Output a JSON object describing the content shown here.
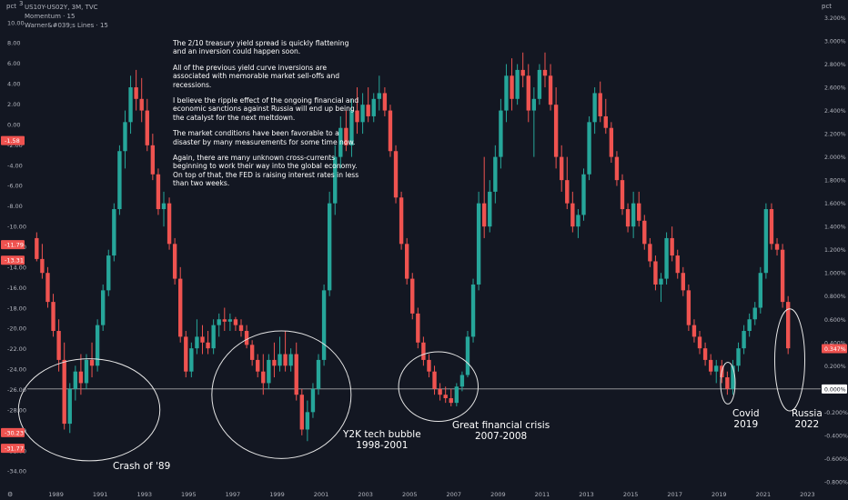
{
  "header": {
    "symbol": "US10Y-US02Y, 3M, TVC",
    "indicator1": "Momentum · 15",
    "indicator2": "Warner&#039;s Lines · 15",
    "left_unit": "pct",
    "right_unit": "pct"
  },
  "note": {
    "p1": "The 2/10 treasury yield spread is quickly flattening and an inversion could happen soon.",
    "p2": "All of the previous yield curve inversions are associated with memorable market sell-offs and recessions.",
    "p3": "I believe the ripple effect of the ongoing financial and economic sanctions against Russia will end up being the catalyst for the next meltdown.",
    "p4": "The market conditions have been favorable to a disaster by many measurements for some time now.",
    "p5": "Again, there are many unknown cross-currents beginning to work their way into the global economy. On top of that, the FED is raising interest rates in less than two weeks."
  },
  "annotations": {
    "crash89": "Crash of '89",
    "y2k_l1": "Y2K tech bubble",
    "y2k_l2": "1998-2001",
    "gfc_l1": "Great financial crisis",
    "gfc_l2": "2007-2008",
    "covid_l1": "Covid",
    "covid_l2": "2019",
    "russia_l1": "Russia",
    "russia_l2": "2022"
  },
  "colors": {
    "background": "#131722",
    "up": "#26a69a",
    "down": "#ef5350",
    "text": "#b2b5be",
    "zero_line": "#c8c8c8"
  },
  "chart_data": {
    "type": "candlestick",
    "x_ticks": [
      "1989",
      "1991",
      "1993",
      "1995",
      "1997",
      "1999",
      "2001",
      "2003",
      "2005",
      "2007",
      "2009",
      "2011",
      "2013",
      "2015",
      "2017",
      "2019",
      "2021",
      "2023"
    ],
    "x_range": [
      1987.7,
      2023.6
    ],
    "left_axis": {
      "ticks": [
        "10.00",
        "8.00",
        "6.00",
        "4.00",
        "2.00",
        "0.00",
        "-2.00",
        "-4.00",
        "-6.00",
        "-8.00",
        "-10.00",
        "-12.00",
        "-14.00",
        "-16.00",
        "-18.00",
        "-20.00",
        "-22.00",
        "-24.00",
        "-26.00",
        "-28.00",
        "-30.00",
        "-32.00",
        "-34.00"
      ],
      "range": [
        -35.5,
        11.5
      ],
      "badges": [
        "-1.58",
        "-11.79",
        "-13.31",
        "-30.23",
        "-31.77"
      ]
    },
    "right_axis": {
      "ticks": [
        "3.200%",
        "3.000%",
        "2.800%",
        "2.600%",
        "2.400%",
        "2.200%",
        "2.000%",
        "1.800%",
        "1.600%",
        "1.400%",
        "1.200%",
        "1.000%",
        "0.800%",
        "0.600%",
        "0.400%",
        "0.200%",
        "0.000%",
        "-0.200%",
        "-0.400%",
        "-0.600%",
        "-0.800%"
      ],
      "range": [
        -0.84,
        3.29
      ],
      "last_value": "0.347%",
      "zero_label": "0.000%",
      "zero_value": 0.0
    },
    "series": [
      {
        "name": "US10Y-US02Y",
        "values_o_h_l_c": [
          [
            1988.0,
            1.3,
            1.35,
            1.1,
            1.12
          ],
          [
            1988.25,
            1.12,
            1.25,
            0.95,
            1.0
          ],
          [
            1988.5,
            1.0,
            1.05,
            0.7,
            0.75
          ],
          [
            1988.75,
            0.75,
            0.82,
            0.45,
            0.5
          ],
          [
            1989.0,
            0.5,
            0.6,
            0.15,
            0.25
          ],
          [
            1989.25,
            0.25,
            0.4,
            -0.35,
            -0.3
          ],
          [
            1989.5,
            -0.3,
            0.05,
            -0.38,
            0.0
          ],
          [
            1989.75,
            0.0,
            0.2,
            -0.1,
            0.15
          ],
          [
            1990.0,
            0.15,
            0.3,
            -0.05,
            0.05
          ],
          [
            1990.25,
            0.05,
            0.3,
            0.0,
            0.25
          ],
          [
            1990.5,
            0.25,
            0.4,
            0.1,
            0.2
          ],
          [
            1990.75,
            0.2,
            0.6,
            0.15,
            0.55
          ],
          [
            1991.0,
            0.55,
            0.9,
            0.5,
            0.85
          ],
          [
            1991.25,
            0.85,
            1.2,
            0.8,
            1.15
          ],
          [
            1991.5,
            1.15,
            1.6,
            1.1,
            1.55
          ],
          [
            1991.75,
            1.55,
            2.1,
            1.5,
            2.05
          ],
          [
            1992.0,
            2.05,
            2.4,
            1.9,
            2.3
          ],
          [
            1992.25,
            2.3,
            2.7,
            2.2,
            2.6
          ],
          [
            1992.5,
            2.6,
            2.75,
            2.4,
            2.5
          ],
          [
            1992.75,
            2.5,
            2.68,
            2.3,
            2.4
          ],
          [
            1993.0,
            2.4,
            2.5,
            2.05,
            2.1
          ],
          [
            1993.25,
            2.1,
            2.2,
            1.8,
            1.85
          ],
          [
            1993.5,
            1.85,
            1.9,
            1.5,
            1.55
          ],
          [
            1993.75,
            1.55,
            1.7,
            1.4,
            1.6
          ],
          [
            1994.0,
            1.6,
            1.65,
            1.2,
            1.25
          ],
          [
            1994.25,
            1.25,
            1.3,
            0.9,
            0.95
          ],
          [
            1994.5,
            0.95,
            1.05,
            0.4,
            0.45
          ],
          [
            1994.75,
            0.45,
            0.5,
            0.1,
            0.15
          ],
          [
            1995.0,
            0.15,
            0.4,
            0.1,
            0.35
          ],
          [
            1995.25,
            0.35,
            0.6,
            0.3,
            0.45
          ],
          [
            1995.5,
            0.45,
            0.55,
            0.3,
            0.4
          ],
          [
            1995.75,
            0.4,
            0.5,
            0.3,
            0.35
          ],
          [
            1996.0,
            0.35,
            0.6,
            0.3,
            0.55
          ],
          [
            1996.25,
            0.55,
            0.65,
            0.45,
            0.6
          ],
          [
            1996.5,
            0.6,
            0.7,
            0.5,
            0.58
          ],
          [
            1996.75,
            0.58,
            0.65,
            0.5,
            0.6
          ],
          [
            1997.0,
            0.6,
            0.62,
            0.5,
            0.55
          ],
          [
            1997.25,
            0.55,
            0.6,
            0.45,
            0.5
          ],
          [
            1997.5,
            0.5,
            0.55,
            0.35,
            0.38
          ],
          [
            1997.75,
            0.38,
            0.42,
            0.2,
            0.25
          ],
          [
            1998.0,
            0.25,
            0.3,
            0.1,
            0.15
          ],
          [
            1998.25,
            0.15,
            0.3,
            -0.05,
            0.05
          ],
          [
            1998.5,
            0.05,
            0.3,
            0.0,
            0.25
          ],
          [
            1998.75,
            0.25,
            0.4,
            0.1,
            0.2
          ],
          [
            1999.0,
            0.2,
            0.45,
            0.15,
            0.3
          ],
          [
            1999.25,
            0.3,
            0.5,
            0.15,
            0.2
          ],
          [
            1999.5,
            0.2,
            0.35,
            0.15,
            0.3
          ],
          [
            1999.75,
            0.3,
            0.4,
            -0.1,
            -0.05
          ],
          [
            2000.0,
            -0.05,
            0.0,
            -0.4,
            -0.35
          ],
          [
            2000.25,
            -0.35,
            -0.1,
            -0.45,
            -0.2
          ],
          [
            2000.5,
            -0.2,
            0.05,
            -0.25,
            0.0
          ],
          [
            2000.75,
            0.0,
            0.3,
            -0.05,
            0.25
          ],
          [
            2001.0,
            0.25,
            0.9,
            0.2,
            0.85
          ],
          [
            2001.25,
            0.85,
            1.7,
            0.8,
            1.6
          ],
          [
            2001.5,
            1.6,
            2.1,
            1.5,
            2.0
          ],
          [
            2001.75,
            2.0,
            2.35,
            1.9,
            2.25
          ],
          [
            2002.0,
            2.25,
            2.4,
            2.05,
            2.1
          ],
          [
            2002.25,
            2.1,
            2.5,
            2.0,
            2.4
          ],
          [
            2002.5,
            2.4,
            2.6,
            2.2,
            2.3
          ],
          [
            2002.75,
            2.3,
            2.55,
            2.2,
            2.45
          ],
          [
            2003.0,
            2.45,
            2.6,
            2.3,
            2.35
          ],
          [
            2003.25,
            2.35,
            2.55,
            2.3,
            2.5
          ],
          [
            2003.5,
            2.5,
            2.7,
            2.4,
            2.55
          ],
          [
            2003.75,
            2.55,
            2.6,
            2.35,
            2.4
          ],
          [
            2004.0,
            2.4,
            2.45,
            2.0,
            2.05
          ],
          [
            2004.25,
            2.05,
            2.1,
            1.6,
            1.65
          ],
          [
            2004.5,
            1.65,
            1.7,
            1.2,
            1.25
          ],
          [
            2004.75,
            1.25,
            1.3,
            0.9,
            0.95
          ],
          [
            2005.0,
            0.95,
            1.0,
            0.6,
            0.65
          ],
          [
            2005.25,
            0.65,
            0.7,
            0.35,
            0.4
          ],
          [
            2005.5,
            0.4,
            0.45,
            0.2,
            0.25
          ],
          [
            2005.75,
            0.25,
            0.3,
            0.1,
            0.15
          ],
          [
            2006.0,
            0.15,
            0.2,
            -0.05,
            0.0
          ],
          [
            2006.25,
            0.0,
            0.05,
            -0.1,
            -0.05
          ],
          [
            2006.5,
            -0.05,
            0.02,
            -0.12,
            -0.08
          ],
          [
            2006.75,
            -0.08,
            0.0,
            -0.15,
            -0.12
          ],
          [
            2007.0,
            -0.12,
            0.05,
            -0.15,
            0.02
          ],
          [
            2007.25,
            0.02,
            0.15,
            -0.02,
            0.12
          ],
          [
            2007.5,
            0.12,
            0.5,
            0.1,
            0.45
          ],
          [
            2007.75,
            0.45,
            0.95,
            0.4,
            0.9
          ],
          [
            2008.0,
            0.9,
            1.7,
            0.85,
            1.6
          ],
          [
            2008.25,
            1.6,
            2.0,
            1.3,
            1.4
          ],
          [
            2008.5,
            1.4,
            1.8,
            1.35,
            1.7
          ],
          [
            2008.75,
            1.7,
            2.1,
            1.6,
            2.0
          ],
          [
            2009.0,
            2.0,
            2.5,
            1.9,
            2.4
          ],
          [
            2009.25,
            2.4,
            2.8,
            2.3,
            2.7
          ],
          [
            2009.5,
            2.7,
            2.85,
            2.4,
            2.5
          ],
          [
            2009.75,
            2.5,
            2.8,
            2.45,
            2.75
          ],
          [
            2010.0,
            2.75,
            2.9,
            2.6,
            2.7
          ],
          [
            2010.25,
            2.7,
            2.8,
            2.3,
            2.4
          ],
          [
            2010.5,
            2.4,
            2.6,
            2.0,
            2.5
          ],
          [
            2010.75,
            2.5,
            2.8,
            2.45,
            2.75
          ],
          [
            2011.0,
            2.75,
            2.9,
            2.6,
            2.7
          ],
          [
            2011.25,
            2.7,
            2.8,
            2.4,
            2.45
          ],
          [
            2011.5,
            2.45,
            2.6,
            1.9,
            2.0
          ],
          [
            2011.75,
            2.0,
            2.1,
            1.7,
            1.8
          ],
          [
            2012.0,
            1.8,
            2.0,
            1.55,
            1.6
          ],
          [
            2012.25,
            1.6,
            1.7,
            1.35,
            1.4
          ],
          [
            2012.5,
            1.4,
            1.55,
            1.3,
            1.5
          ],
          [
            2012.75,
            1.5,
            1.9,
            1.45,
            1.85
          ],
          [
            2013.0,
            1.85,
            2.35,
            1.8,
            2.3
          ],
          [
            2013.25,
            2.3,
            2.6,
            2.2,
            2.55
          ],
          [
            2013.5,
            2.55,
            2.65,
            2.3,
            2.35
          ],
          [
            2013.75,
            2.35,
            2.5,
            2.2,
            2.25
          ],
          [
            2014.0,
            2.25,
            2.3,
            1.95,
            2.0
          ],
          [
            2014.25,
            2.0,
            2.05,
            1.75,
            1.8
          ],
          [
            2014.5,
            1.8,
            1.85,
            1.5,
            1.55
          ],
          [
            2014.75,
            1.55,
            1.6,
            1.35,
            1.4
          ],
          [
            2015.0,
            1.4,
            1.7,
            1.3,
            1.6
          ],
          [
            2015.25,
            1.6,
            1.7,
            1.4,
            1.45
          ],
          [
            2015.5,
            1.45,
            1.5,
            1.2,
            1.25
          ],
          [
            2015.75,
            1.25,
            1.3,
            1.05,
            1.1
          ],
          [
            2016.0,
            1.1,
            1.15,
            0.85,
            0.9
          ],
          [
            2016.25,
            0.9,
            1.0,
            0.75,
            0.95
          ],
          [
            2016.5,
            0.95,
            1.35,
            0.9,
            1.3
          ],
          [
            2016.75,
            1.3,
            1.4,
            1.1,
            1.15
          ],
          [
            2017.0,
            1.15,
            1.2,
            0.95,
            1.0
          ],
          [
            2017.25,
            1.0,
            1.05,
            0.8,
            0.85
          ],
          [
            2017.5,
            0.85,
            0.9,
            0.5,
            0.55
          ],
          [
            2017.75,
            0.55,
            0.6,
            0.4,
            0.45
          ],
          [
            2018.0,
            0.45,
            0.5,
            0.3,
            0.35
          ],
          [
            2018.25,
            0.35,
            0.4,
            0.2,
            0.25
          ],
          [
            2018.5,
            0.25,
            0.3,
            0.12,
            0.15
          ],
          [
            2018.75,
            0.15,
            0.25,
            0.05,
            0.2
          ],
          [
            2019.0,
            0.2,
            0.25,
            0.05,
            0.1
          ],
          [
            2019.25,
            0.1,
            0.15,
            -0.05,
            0.0
          ],
          [
            2019.5,
            0.0,
            0.25,
            -0.05,
            0.2
          ],
          [
            2019.75,
            0.2,
            0.4,
            0.15,
            0.35
          ],
          [
            2020.0,
            0.35,
            0.55,
            0.3,
            0.5
          ],
          [
            2020.25,
            0.5,
            0.65,
            0.45,
            0.6
          ],
          [
            2020.5,
            0.6,
            0.75,
            0.55,
            0.7
          ],
          [
            2020.75,
            0.7,
            1.05,
            0.65,
            1.0
          ],
          [
            2021.0,
            1.0,
            1.6,
            0.95,
            1.55
          ],
          [
            2021.25,
            1.55,
            1.6,
            1.2,
            1.25
          ],
          [
            2021.5,
            1.25,
            1.3,
            1.15,
            1.2
          ],
          [
            2021.75,
            1.2,
            1.25,
            0.7,
            0.75
          ],
          [
            2022.0,
            0.75,
            0.8,
            0.3,
            0.35
          ]
        ]
      }
    ],
    "ellipses": [
      {
        "label": "crash89",
        "cx": 1990.5,
        "cy": -0.18,
        "rx": 3.2,
        "ry": 0.44
      },
      {
        "label": "y2k",
        "cx": 1999.2,
        "cy": -0.05,
        "rx": 3.15,
        "ry": 0.55
      },
      {
        "label": "gfc",
        "cx": 2006.3,
        "cy": 0.02,
        "rx": 1.8,
        "ry": 0.3
      },
      {
        "label": "covid",
        "cx": 2019.4,
        "cy": 0.05,
        "rx": 0.33,
        "ry": 0.18
      },
      {
        "label": "russia",
        "cx": 2022.2,
        "cy": 0.25,
        "rx": 0.68,
        "ry": 0.44
      }
    ]
  }
}
